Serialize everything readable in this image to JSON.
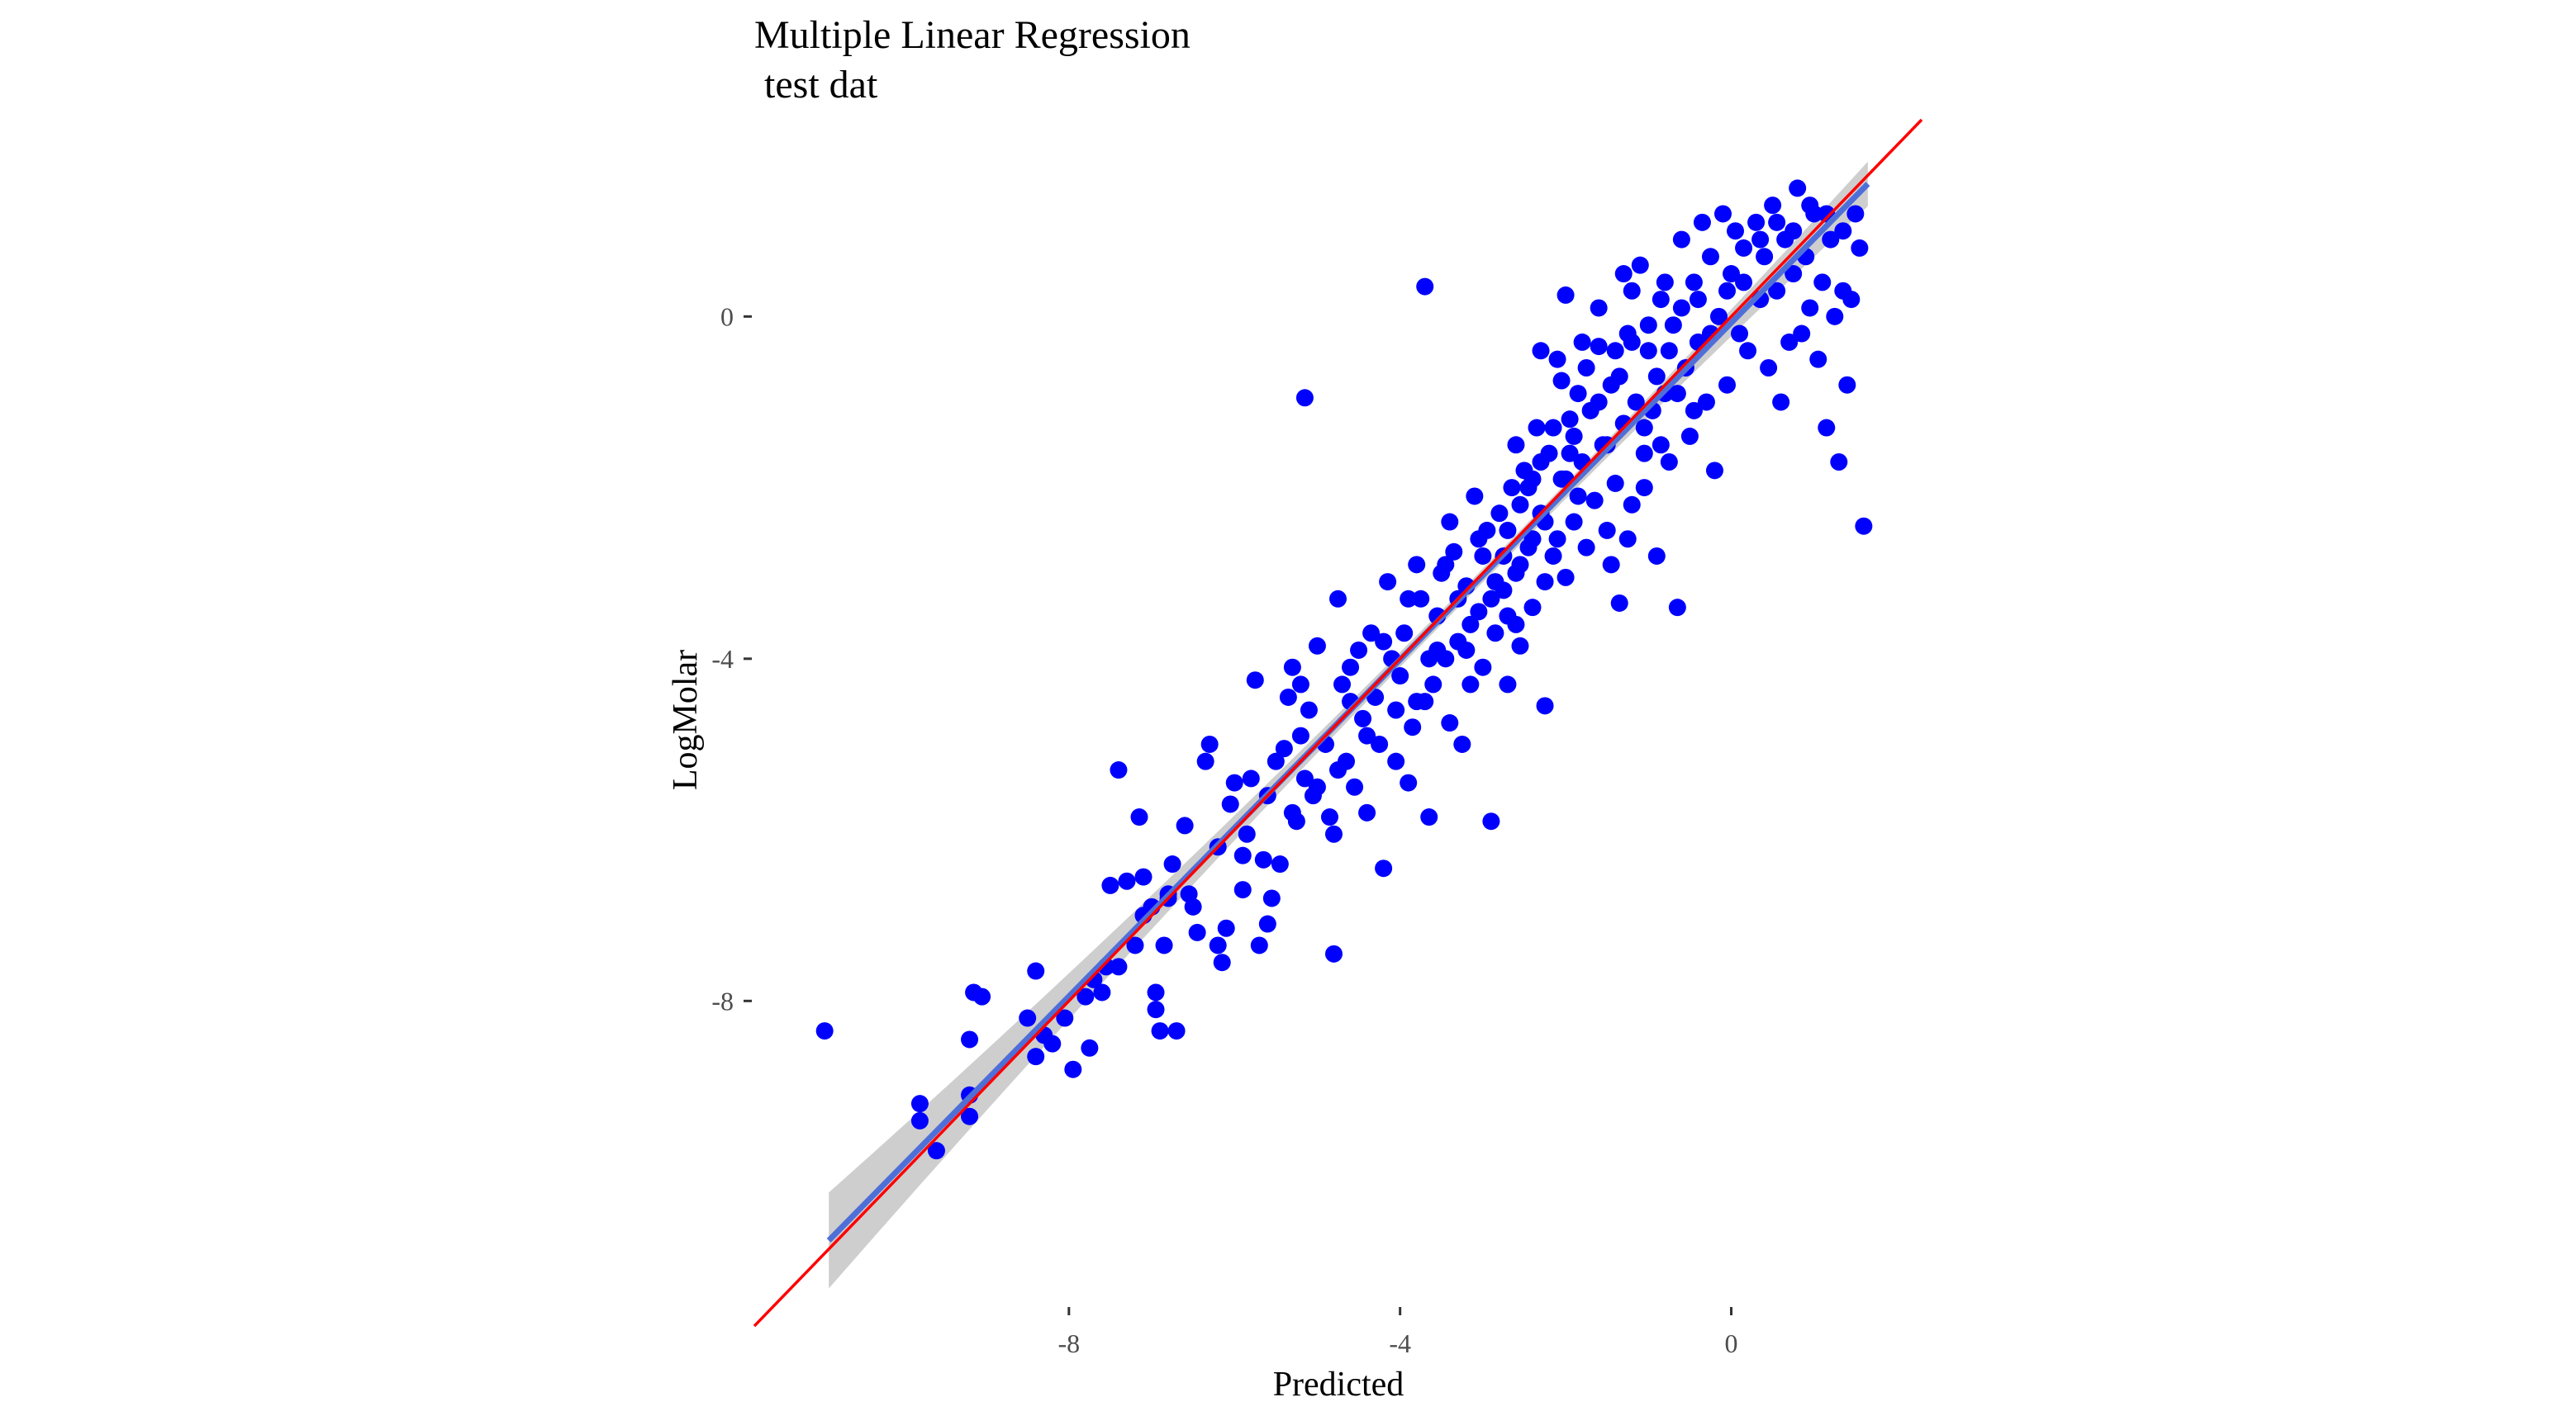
{
  "chart_data": {
    "type": "scatter",
    "title_lines": [
      "Multiple Linear Regression",
      " test dat"
    ],
    "xlabel": "Predicted",
    "ylabel": "LogMolar",
    "xlim": [
      -11.8,
      2.3
    ],
    "ylim": [
      -11.5,
      2.3
    ],
    "x_ticks": [
      {
        "value": -8,
        "label": "-8"
      },
      {
        "value": -4,
        "label": "-4"
      },
      {
        "value": 0,
        "label": "0"
      }
    ],
    "y_ticks": [
      {
        "value": 0,
        "label": "0"
      },
      {
        "value": -4,
        "label": "-4"
      },
      {
        "value": -8,
        "label": "-8"
      }
    ],
    "grid": false,
    "legend": "none",
    "colors": {
      "points": "#0000FF",
      "fit_line": "#4F6FD8",
      "fit_band": "#BEBEBE",
      "identity_line": "#FF0000"
    },
    "series": [
      {
        "points": [
          [
            -10.95,
            -8.35
          ],
          [
            -9.8,
            -9.2
          ],
          [
            -9.8,
            -9.4
          ],
          [
            -9.6,
            -9.75
          ],
          [
            -9.2,
            -9.35
          ],
          [
            -9.2,
            -9.1
          ],
          [
            -9.2,
            -8.45
          ],
          [
            -9.15,
            -7.9
          ],
          [
            -9.05,
            -7.95
          ],
          [
            -8.5,
            -8.2
          ],
          [
            -8.4,
            -7.65
          ],
          [
            -8.4,
            -8.65
          ],
          [
            -8.3,
            -8.4
          ],
          [
            -8.2,
            -8.5
          ],
          [
            -8.05,
            -8.2
          ],
          [
            -7.95,
            -8.8
          ],
          [
            -7.75,
            -8.55
          ],
          [
            -7.8,
            -7.95
          ],
          [
            -7.7,
            -7.75
          ],
          [
            -7.6,
            -7.9
          ],
          [
            -7.55,
            -7.6
          ],
          [
            -7.5,
            -6.65
          ],
          [
            -7.4,
            -5.3
          ],
          [
            -7.3,
            -6.6
          ],
          [
            -7.2,
            -7.35
          ],
          [
            -7.15,
            -5.85
          ],
          [
            -7.1,
            -6.55
          ],
          [
            -7.0,
            -6.9
          ],
          [
            -6.95,
            -7.9
          ],
          [
            -6.95,
            -8.1
          ],
          [
            -6.9,
            -8.35
          ],
          [
            -6.85,
            -7.35
          ],
          [
            -6.8,
            -6.75
          ],
          [
            -6.75,
            -6.4
          ],
          [
            -6.7,
            -8.35
          ],
          [
            -6.6,
            -5.95
          ],
          [
            -6.55,
            -6.75
          ],
          [
            -6.45,
            -7.2
          ],
          [
            -6.35,
            -5.2
          ],
          [
            -6.3,
            -5.0
          ],
          [
            -6.2,
            -7.35
          ],
          [
            -6.15,
            -7.55
          ],
          [
            -6.1,
            -7.15
          ],
          [
            -6.05,
            -5.7
          ],
          [
            -6.0,
            -5.45
          ],
          [
            -5.9,
            -6.3
          ],
          [
            -5.85,
            -6.05
          ],
          [
            -5.8,
            -5.4
          ],
          [
            -5.75,
            -4.25
          ],
          [
            -5.7,
            -7.35
          ],
          [
            -5.65,
            -6.35
          ],
          [
            -5.6,
            -7.1
          ],
          [
            -5.55,
            -6.8
          ],
          [
            -5.5,
            -5.2
          ],
          [
            -5.45,
            -6.4
          ],
          [
            -5.4,
            -5.05
          ],
          [
            -5.35,
            -4.45
          ],
          [
            -5.3,
            -4.1
          ],
          [
            -5.25,
            -5.9
          ],
          [
            -5.2,
            -4.3
          ],
          [
            -5.2,
            -4.9
          ],
          [
            -5.15,
            -5.4
          ],
          [
            -5.1,
            -4.6
          ],
          [
            -5.05,
            -5.6
          ],
          [
            -5.0,
            -3.85
          ],
          [
            -4.9,
            -5.0
          ],
          [
            -4.85,
            -5.85
          ],
          [
            -4.8,
            -6.05
          ],
          [
            -4.8,
            -7.45
          ],
          [
            -4.75,
            -3.3
          ],
          [
            -4.7,
            -4.3
          ],
          [
            -4.65,
            -5.2
          ],
          [
            -4.6,
            -4.1
          ],
          [
            -4.55,
            -5.5
          ],
          [
            -4.5,
            -3.9
          ],
          [
            -4.45,
            -4.7
          ],
          [
            -4.4,
            -5.8
          ],
          [
            -4.35,
            -3.7
          ],
          [
            -4.3,
            -4.45
          ],
          [
            -4.25,
            -5.0
          ],
          [
            -4.2,
            -6.45
          ],
          [
            -4.15,
            -3.1
          ],
          [
            -4.1,
            -4.0
          ],
          [
            -4.05,
            -5.2
          ],
          [
            -4.0,
            -4.2
          ],
          [
            -3.95,
            -3.7
          ],
          [
            -3.9,
            -5.45
          ],
          [
            -3.85,
            -4.8
          ],
          [
            -3.8,
            -2.9
          ],
          [
            -3.75,
            -3.3
          ],
          [
            -3.7,
            -4.5
          ],
          [
            -3.65,
            -5.85
          ],
          [
            -3.6,
            -4.3
          ],
          [
            -3.55,
            -3.5
          ],
          [
            -3.5,
            -3.0
          ],
          [
            -3.45,
            -4.0
          ],
          [
            -3.4,
            -4.75
          ],
          [
            -3.35,
            -2.75
          ],
          [
            -3.3,
            -3.8
          ],
          [
            -3.25,
            -5.0
          ],
          [
            -3.2,
            -3.15
          ],
          [
            -3.15,
            -4.3
          ],
          [
            -3.1,
            -2.1
          ],
          [
            -3.05,
            -3.45
          ],
          [
            -3.0,
            -4.1
          ],
          [
            -2.95,
            -2.5
          ],
          [
            -2.9,
            -5.9
          ],
          [
            -2.85,
            -3.7
          ],
          [
            -2.8,
            -2.3
          ],
          [
            -2.75,
            -3.2
          ],
          [
            -2.7,
            -4.3
          ],
          [
            -2.65,
            -2.0
          ],
          [
            -2.6,
            -3.0
          ],
          [
            -2.55,
            -3.85
          ],
          [
            -2.5,
            -1.8
          ],
          [
            -2.45,
            -2.7
          ],
          [
            -2.4,
            -3.4
          ],
          [
            -2.35,
            -1.3
          ],
          [
            -2.3,
            -2.3
          ],
          [
            -2.25,
            -4.55
          ],
          [
            -2.2,
            -1.6
          ],
          [
            -2.15,
            -2.8
          ],
          [
            -2.1,
            -0.5
          ],
          [
            -2.05,
            -1.9
          ],
          [
            -2.0,
            -3.05
          ],
          [
            -1.95,
            -1.2
          ],
          [
            -1.9,
            -2.4
          ],
          [
            -1.85,
            -0.9
          ],
          [
            -1.8,
            -1.7
          ],
          [
            -1.75,
            -2.7
          ],
          [
            -1.7,
            -1.1
          ],
          [
            -1.65,
            -2.15
          ],
          [
            -1.6,
            -0.35
          ],
          [
            -1.55,
            -1.5
          ],
          [
            -1.5,
            -2.5
          ],
          [
            -1.45,
            -0.8
          ],
          [
            -1.4,
            -1.95
          ],
          [
            -1.35,
            -3.35
          ],
          [
            -1.3,
            -1.25
          ],
          [
            -1.25,
            -0.2
          ],
          [
            -1.2,
            -2.2
          ],
          [
            -1.15,
            -1.0
          ],
          [
            -1.1,
            0.6
          ],
          [
            -1.05,
            -1.6
          ],
          [
            -1.0,
            -0.4
          ],
          [
            -0.95,
            -1.1
          ],
          [
            -0.9,
            -2.8
          ],
          [
            -0.85,
            0.2
          ],
          [
            -0.8,
            -0.9
          ],
          [
            -0.75,
            -1.7
          ],
          [
            -0.7,
            -0.1
          ],
          [
            -0.65,
            -3.4
          ],
          [
            -0.6,
            0.9
          ],
          [
            -0.55,
            -0.6
          ],
          [
            -0.5,
            -1.4
          ],
          [
            -0.45,
            0.4
          ],
          [
            -0.4,
            -0.3
          ],
          [
            -0.35,
            1.1
          ],
          [
            -0.3,
            -1.0
          ],
          [
            -0.25,
            0.7
          ],
          [
            -0.2,
            -1.8
          ],
          [
            -0.15,
            0.0
          ],
          [
            -0.1,
            1.2
          ],
          [
            -0.05,
            -0.8
          ],
          [
            0.0,
            0.5
          ],
          [
            0.05,
            1.0
          ],
          [
            0.1,
            -0.2
          ],
          [
            0.15,
            0.8
          ],
          [
            0.2,
            -0.4
          ],
          [
            0.3,
            1.1
          ],
          [
            0.35,
            0.2
          ],
          [
            0.4,
            0.7
          ],
          [
            0.45,
            -0.6
          ],
          [
            0.5,
            1.3
          ],
          [
            0.55,
            0.3
          ],
          [
            0.6,
            -1.0
          ],
          [
            0.65,
            0.9
          ],
          [
            0.7,
            -0.3
          ],
          [
            0.75,
            0.5
          ],
          [
            0.8,
            1.5
          ],
          [
            0.85,
            -0.2
          ],
          [
            0.9,
            0.7
          ],
          [
            0.95,
            0.1
          ],
          [
            1.0,
            1.2
          ],
          [
            1.05,
            -0.5
          ],
          [
            1.1,
            0.4
          ],
          [
            1.15,
            -1.3
          ],
          [
            1.2,
            0.9
          ],
          [
            1.25,
            0.0
          ],
          [
            1.3,
            -1.7
          ],
          [
            1.35,
            0.3
          ],
          [
            1.4,
            -0.8
          ],
          [
            1.5,
            1.2
          ],
          [
            1.45,
            0.2
          ],
          [
            1.55,
            0.8
          ],
          [
            1.6,
            -2.45
          ],
          [
            -1.3,
            0.5
          ],
          [
            -5.15,
            -0.95
          ],
          [
            -3.7,
            0.35
          ],
          [
            -2.0,
            0.25
          ],
          [
            -2.3,
            -0.4
          ],
          [
            -2.05,
            -0.75
          ],
          [
            -1.9,
            -1.4
          ],
          [
            -1.75,
            -0.6
          ],
          [
            -1.6,
            -1.0
          ],
          [
            -1.5,
            -1.5
          ],
          [
            -1.35,
            -0.7
          ],
          [
            -1.2,
            -0.3
          ],
          [
            -1.05,
            -1.3
          ],
          [
            -0.9,
            -0.7
          ],
          [
            -0.75,
            -0.4
          ],
          [
            -2.6,
            -1.5
          ],
          [
            -2.45,
            -2.0
          ],
          [
            -2.3,
            -1.7
          ],
          [
            -2.15,
            -1.3
          ],
          [
            -2.0,
            -1.9
          ],
          [
            -1.85,
            -2.1
          ],
          [
            -2.7,
            -2.5
          ],
          [
            -2.55,
            -2.2
          ],
          [
            -2.4,
            -1.9
          ],
          [
            -2.25,
            -2.4
          ],
          [
            -2.1,
            -2.6
          ],
          [
            -1.95,
            -1.6
          ],
          [
            -3.0,
            -2.8
          ],
          [
            -2.85,
            -3.1
          ],
          [
            -2.7,
            -3.5
          ],
          [
            -2.55,
            -2.9
          ],
          [
            -2.4,
            -2.6
          ],
          [
            -2.25,
            -3.1
          ],
          [
            -3.2,
            -3.9
          ],
          [
            -3.05,
            -2.6
          ],
          [
            -2.9,
            -3.3
          ],
          [
            -2.75,
            -2.8
          ],
          [
            -2.6,
            -3.6
          ],
          [
            -3.4,
            -2.4
          ],
          [
            -3.3,
            -3.3
          ],
          [
            -3.15,
            -3.6
          ],
          [
            -3.55,
            -3.9
          ],
          [
            -3.45,
            -2.9
          ],
          [
            -3.8,
            -4.5
          ],
          [
            -3.65,
            -4.0
          ],
          [
            -3.9,
            -3.3
          ],
          [
            -4.05,
            -4.6
          ],
          [
            -4.2,
            -3.8
          ],
          [
            -4.4,
            -4.9
          ],
          [
            -4.6,
            -4.5
          ],
          [
            -4.75,
            -5.3
          ],
          [
            -5.0,
            -5.5
          ],
          [
            -5.3,
            -5.8
          ],
          [
            -5.6,
            -5.6
          ],
          [
            -5.9,
            -6.7
          ],
          [
            -6.2,
            -6.2
          ],
          [
            -6.5,
            -6.9
          ],
          [
            -6.8,
            -6.8
          ],
          [
            -7.1,
            -7.0
          ],
          [
            -7.4,
            -7.6
          ],
          [
            -1.45,
            -2.9
          ],
          [
            -1.25,
            -2.6
          ],
          [
            -1.05,
            -2.0
          ],
          [
            -0.85,
            -1.5
          ],
          [
            -0.65,
            -0.9
          ],
          [
            -0.45,
            -1.1
          ],
          [
            -0.25,
            -0.2
          ],
          [
            -0.05,
            0.3
          ],
          [
            0.15,
            0.4
          ],
          [
            0.35,
            0.9
          ],
          [
            0.55,
            1.1
          ],
          [
            0.75,
            1.0
          ],
          [
            0.95,
            1.3
          ],
          [
            1.15,
            1.2
          ],
          [
            1.35,
            1.0
          ],
          [
            -0.4,
            0.2
          ],
          [
            -0.6,
            0.1
          ],
          [
            -0.8,
            0.4
          ],
          [
            -1.0,
            -0.1
          ],
          [
            -1.2,
            0.3
          ],
          [
            -1.4,
            -0.4
          ],
          [
            -1.6,
            0.1
          ],
          [
            -1.8,
            -0.3
          ]
        ]
      }
    ],
    "fit_line": {
      "x": [
        -10.9,
        1.65
      ],
      "y": [
        -10.8,
        1.55
      ]
    },
    "identity_line": {
      "x": [
        -11.8,
        2.3
      ],
      "y": [
        -11.8,
        2.3
      ]
    }
  }
}
